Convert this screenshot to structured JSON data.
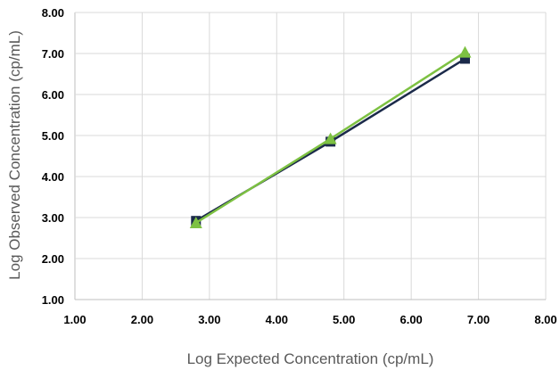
{
  "chart_data": {
    "type": "line",
    "xlabel": "Log Expected Concentration (cp/mL)",
    "ylabel": "Log Observed Concentration (cp/mL)",
    "xlim": [
      1.0,
      8.0
    ],
    "ylim": [
      1.0,
      8.0
    ],
    "x_ticks": [
      "1.00",
      "2.00",
      "3.00",
      "4.00",
      "5.00",
      "6.00",
      "7.00",
      "8.00"
    ],
    "y_ticks": [
      "1.00",
      "2.00",
      "3.00",
      "4.00",
      "5.00",
      "6.00",
      "7.00",
      "8.00"
    ],
    "grid": true,
    "series": [
      {
        "marker": "square",
        "color": "#1b2a4a",
        "points": [
          {
            "x": 2.8,
            "y": 2.92
          },
          {
            "x": 4.8,
            "y": 4.85
          },
          {
            "x": 6.8,
            "y": 6.87
          }
        ]
      },
      {
        "marker": "triangle",
        "color": "#7dc142",
        "points": [
          {
            "x": 2.8,
            "y": 2.87
          },
          {
            "x": 4.8,
            "y": 4.92
          },
          {
            "x": 6.8,
            "y": 7.03
          }
        ]
      }
    ]
  }
}
